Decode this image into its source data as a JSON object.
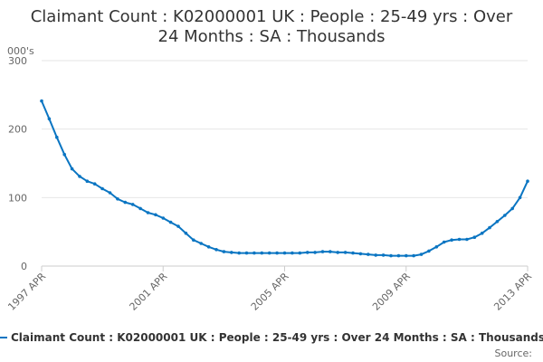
{
  "chart_data": {
    "type": "line",
    "title_lines": [
      "Claimant Count : K02000001 UK : People : 25-49 yrs : Over",
      "24 Months : SA : Thousands"
    ],
    "ylabel": "000's",
    "ylim": [
      0,
      300
    ],
    "yticks": [
      0,
      100,
      200,
      300
    ],
    "xlim": [
      1997.25,
      2013.25
    ],
    "xticks": [
      {
        "value": 1997.25,
        "label": "1997 APR"
      },
      {
        "value": 2001.25,
        "label": "2001 APR"
      },
      {
        "value": 2005.25,
        "label": "2005 APR"
      },
      {
        "value": 2009.25,
        "label": "2009 APR"
      },
      {
        "value": 2013.25,
        "label": "2013 APR"
      }
    ],
    "grid": "horizontal",
    "legend_position": "bottom",
    "colors": {
      "series": "#0a75c2",
      "grid": "#e6e6e6",
      "axis": "#cccccc"
    },
    "series": [
      {
        "name": "Claimant Count : K02000001 UK : People : 25-49 yrs : Over 24 Months : SA : Thousands",
        "x": [
          1997.25,
          1997.5,
          1997.75,
          1998.0,
          1998.25,
          1998.5,
          1998.75,
          1999.0,
          1999.25,
          1999.5,
          1999.75,
          2000.0,
          2000.25,
          2000.5,
          2000.75,
          2001.0,
          2001.25,
          2001.5,
          2001.75,
          2002.0,
          2002.25,
          2002.5,
          2002.75,
          2003.0,
          2003.25,
          2003.5,
          2003.75,
          2004.0,
          2004.25,
          2004.5,
          2004.75,
          2005.0,
          2005.25,
          2005.5,
          2005.75,
          2006.0,
          2006.25,
          2006.5,
          2006.75,
          2007.0,
          2007.25,
          2007.5,
          2007.75,
          2008.0,
          2008.25,
          2008.5,
          2008.75,
          2009.0,
          2009.25,
          2009.5,
          2009.75,
          2010.0,
          2010.25,
          2010.5,
          2010.75,
          2011.0,
          2011.25,
          2011.5,
          2011.75,
          2012.0,
          2012.25,
          2012.5,
          2012.75,
          2013.0,
          2013.25
        ],
        "y": [
          241,
          215,
          188,
          163,
          142,
          131,
          124,
          120,
          113,
          107,
          98,
          93,
          90,
          84,
          78,
          75,
          70,
          64,
          58,
          48,
          38,
          33,
          28,
          24,
          21,
          20,
          19,
          19,
          19,
          19,
          19,
          19,
          19,
          19,
          19,
          20,
          20,
          21,
          21,
          20,
          20,
          19,
          18,
          17,
          16,
          16,
          15,
          15,
          15,
          15,
          17,
          22,
          28,
          35,
          38,
          39,
          39,
          42,
          48,
          56,
          65,
          74,
          84,
          100,
          124
        ]
      }
    ],
    "source_label": "Source:"
  }
}
